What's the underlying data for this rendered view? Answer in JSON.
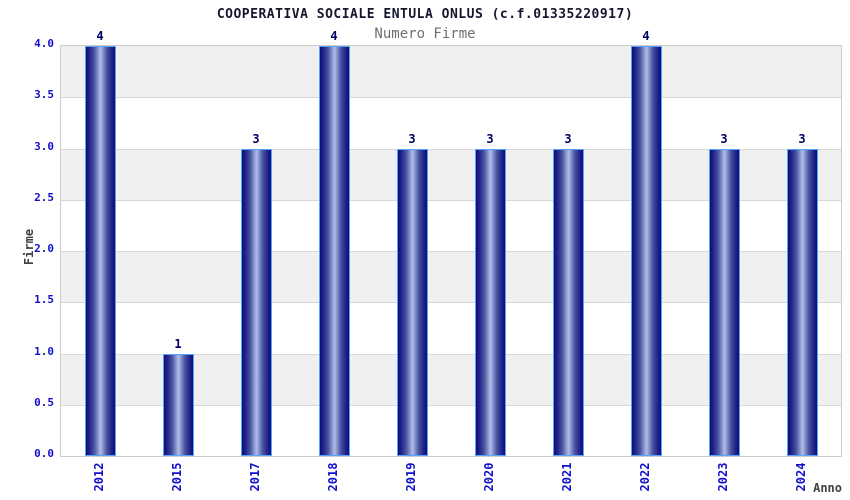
{
  "chart_data": {
    "type": "bar",
    "title": "COOPERATIVA SOCIALE ENTULA ONLUS (c.f.01335220917)",
    "subtitle": "Numero Firme",
    "xlabel": "Anno",
    "ylabel": "Firme",
    "categories": [
      "2012",
      "2015",
      "2017",
      "2018",
      "2019",
      "2020",
      "2021",
      "2022",
      "2023",
      "2024"
    ],
    "values": [
      4,
      1,
      3,
      4,
      3,
      3,
      3,
      4,
      3,
      3
    ],
    "ylim": [
      0,
      4
    ],
    "ytick_step": 0.5,
    "yticks": [
      "0.0",
      "0.5",
      "1.0",
      "1.5",
      "2.0",
      "2.5",
      "3.0",
      "3.5",
      "4.0"
    ],
    "grid": "alternating-horizontal-bands",
    "legend": "none"
  },
  "colors": {
    "title": "#16162e",
    "subtitle": "#6f6f6f",
    "axis_label": "#404040",
    "tick_label": "#1111cc",
    "value_label": "#000066",
    "bar_dark": "#10106e",
    "bar_mid": "#1c1c86",
    "bar_light": "#b2bde8",
    "bar_border": "#55a4ff",
    "band_gray": "#f0f0f0",
    "band_white": "#ffffff",
    "grid_line": "#d8d8d8",
    "plot_border": "#cccccc",
    "background": "#ffffff"
  }
}
